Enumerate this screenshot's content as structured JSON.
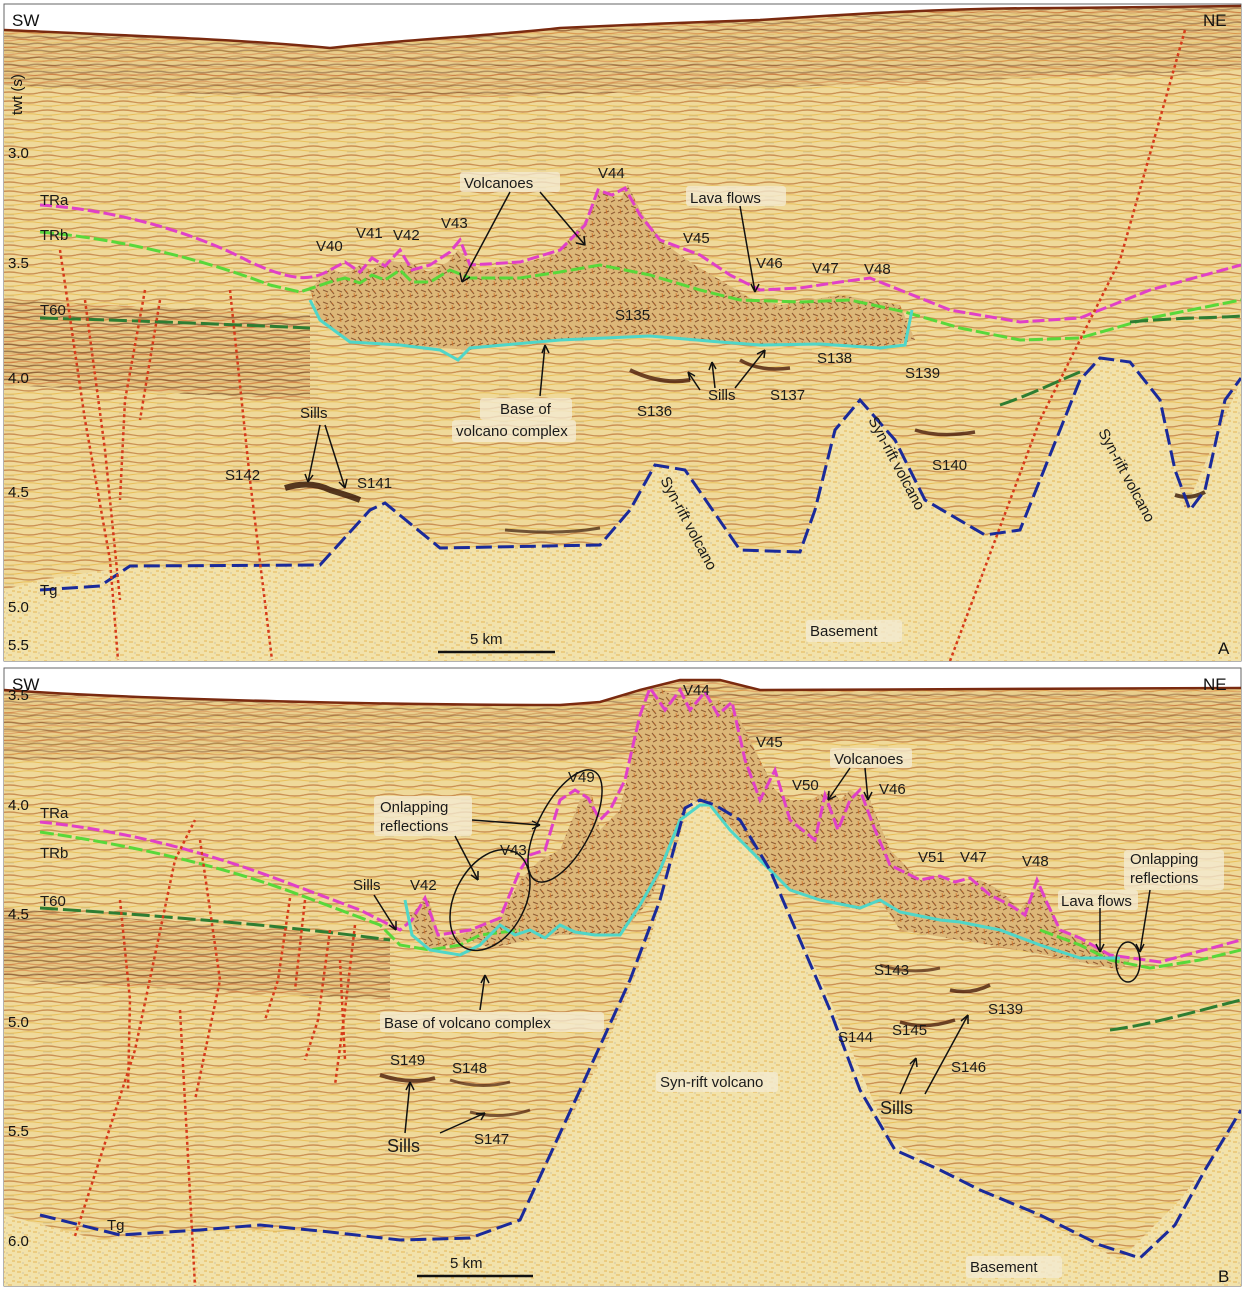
{
  "panel_a": {
    "letter": "A",
    "sw": "SW",
    "ne": "NE",
    "axis_title": "twt (s)",
    "ticks": [
      "3.0",
      "3.5",
      "4.0",
      "4.5",
      "5.0",
      "5.5"
    ],
    "scale_bar": "5 km",
    "horizons": [
      "TRa",
      "TRb",
      "T60",
      "Tg"
    ],
    "volcanoes": [
      "V40",
      "V41",
      "V42",
      "V43",
      "V44",
      "V45",
      "V46",
      "V47",
      "V48"
    ],
    "sills": [
      "S135",
      "S136",
      "S137",
      "S138",
      "S139",
      "S140",
      "S141",
      "S142"
    ],
    "annotations": {
      "volcanoes": "Volcanoes",
      "lava_flows": "Lava flows",
      "sills_left": "Sills",
      "sills_mid": "Sills",
      "base_line1": "Base of",
      "base_line2": "volcano complex",
      "synrift_1": "Syn-rift volcano",
      "synrift_2": "Syn-rift volcano",
      "synrift_3": "Syn-rift volcano",
      "basement": "Basement"
    }
  },
  "panel_b": {
    "letter": "B",
    "sw": "SW",
    "ne": "NE",
    "ticks": [
      "3.5",
      "4.0",
      "4.5",
      "5.0",
      "5.5",
      "6.0"
    ],
    "scale_bar": "5 km",
    "horizons": [
      "TRa",
      "TRb",
      "T60",
      "Tg"
    ],
    "volcanoes": [
      "V42",
      "V43",
      "V44",
      "V45",
      "V46",
      "V47",
      "V48",
      "V49",
      "V50",
      "V51"
    ],
    "sills": [
      "S139",
      "S143",
      "S144",
      "S145",
      "S146",
      "S147",
      "S148",
      "S149"
    ],
    "annotations": {
      "onlap_left_1": "Onlapping",
      "onlap_left_2": "reflections",
      "onlap_right_1": "Onlapping",
      "onlap_right_2": "reflections",
      "volcanoes": "Volcanoes",
      "lava_flows": "Lava flows",
      "sills_top": "Sills",
      "sills_left": "Sills",
      "sills_right": "Sills",
      "base": "Base of volcano complex",
      "synrift": "Syn-rift volcano",
      "basement": "Basement"
    }
  },
  "colors": {
    "background": "#f0dc9a",
    "TRa": "#e040c8",
    "TRb": "#58d83a",
    "T60": "#2e7d32",
    "base_of_volcano_complex": "#4fd6c8",
    "syn_rift_outline": "#1a2a9a",
    "faults": "#d63a1a"
  }
}
